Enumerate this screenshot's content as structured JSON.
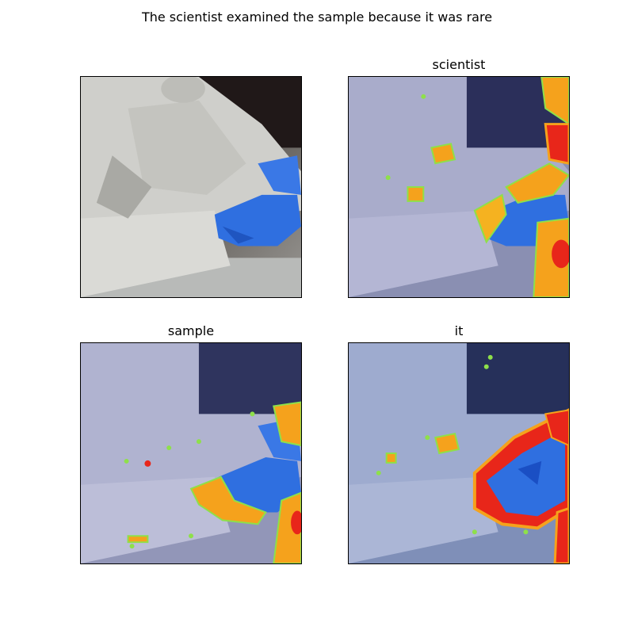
{
  "figure": {
    "title": "The scientist examined the sample because it was rare",
    "panels": [
      {
        "title": "",
        "overlay": "none"
      },
      {
        "title": "scientist",
        "overlay": "attention-heatmap"
      },
      {
        "title": "sample",
        "overlay": "attention-heatmap"
      },
      {
        "title": "it",
        "overlay": "attention-heatmap"
      }
    ]
  },
  "colors": {
    "glove": "#2f6fe0",
    "coat": "#d6d6d2",
    "heat_hot": "#e8261a",
    "heat_warm": "#f5a21c",
    "heat_edge": "#8ee04a",
    "tint_cool": "#2233aa"
  }
}
